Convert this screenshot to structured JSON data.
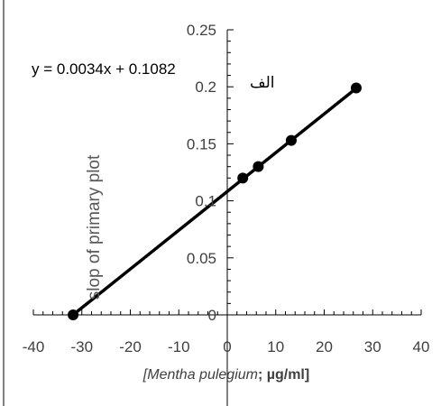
{
  "chart_data": {
    "type": "scatter",
    "title": "",
    "xlabel_parts": {
      "bracket_open": "[",
      "species": "Mentha pulegium",
      "sep": ";",
      "unit": " µg/ml]"
    },
    "ylabel": "slop of primary plot",
    "equation": "y = 0.0034x + 0.1082",
    "annotation": "الف",
    "xlim": [
      -40,
      40
    ],
    "ylim": [
      0,
      0.25
    ],
    "x_ticks": [
      -40,
      -30,
      -20,
      -10,
      0,
      10,
      20,
      30,
      40
    ],
    "y_ticks": [
      0,
      0.05,
      0.1,
      0.15,
      0.2,
      0.25
    ],
    "y_tick_labels": [
      "0",
      "0.05",
      "0.1",
      "0.15",
      "0.2",
      "0.25"
    ],
    "series": [
      {
        "points": [
          {
            "x": -31.8,
            "y": 0
          },
          {
            "x": 3.2,
            "y": 0.12
          },
          {
            "x": 6.4,
            "y": 0.13
          },
          {
            "x": 13.2,
            "y": 0.153
          },
          {
            "x": 26.6,
            "y": 0.199
          }
        ]
      }
    ],
    "trendline": {
      "slope": 0.0034,
      "intercept": 0.1082,
      "x_from": -31.8,
      "x_to": 26.6
    },
    "grid": false,
    "legend": "none"
  }
}
